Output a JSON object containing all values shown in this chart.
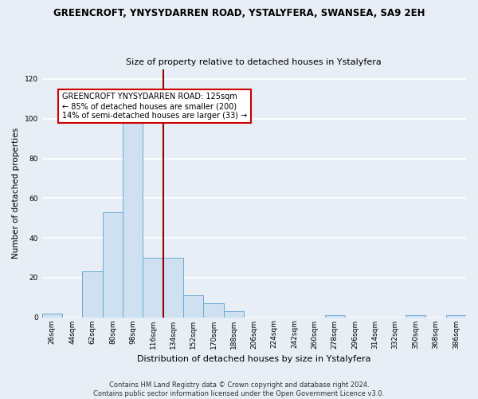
{
  "title": "GREENCROFT, YNYSYDARREN ROAD, YSTALYFERA, SWANSEA, SA9 2EH",
  "subtitle": "Size of property relative to detached houses in Ystalyfera",
  "xlabel": "Distribution of detached houses by size in Ystalyfera",
  "ylabel": "Number of detached properties",
  "bar_labels": [
    "26sqm",
    "44sqm",
    "62sqm",
    "80sqm",
    "98sqm",
    "116sqm",
    "134sqm",
    "152sqm",
    "170sqm",
    "188sqm",
    "206sqm",
    "224sqm",
    "242sqm",
    "260sqm",
    "278sqm",
    "296sqm",
    "314sqm",
    "332sqm",
    "350sqm",
    "368sqm",
    "386sqm"
  ],
  "bar_values": [
    2,
    0,
    23,
    53,
    98,
    30,
    30,
    11,
    7,
    3,
    0,
    0,
    0,
    0,
    1,
    0,
    0,
    0,
    1,
    0,
    1
  ],
  "bar_color": "#cfe0f0",
  "bar_edge_color": "#6aaad4",
  "ylim": [
    0,
    125
  ],
  "yticks": [
    0,
    20,
    40,
    60,
    80,
    100,
    120
  ],
  "vline_x": 5.5,
  "vline_color": "#990000",
  "annotation_title": "GREENCROFT YNYSYDARREN ROAD: 125sqm",
  "annotation_line1": "← 85% of detached houses are smaller (200)",
  "annotation_line2": "14% of semi-detached houses are larger (33) →",
  "annotation_box_color": "#ffffff",
  "annotation_box_edge": "#cc0000",
  "footer1": "Contains HM Land Registry data © Crown copyright and database right 2024.",
  "footer2": "Contains public sector information licensed under the Open Government Licence v3.0.",
  "bg_color": "#e8eef5",
  "plot_bg_color": "#e8eef5",
  "grid_color": "#ffffff"
}
